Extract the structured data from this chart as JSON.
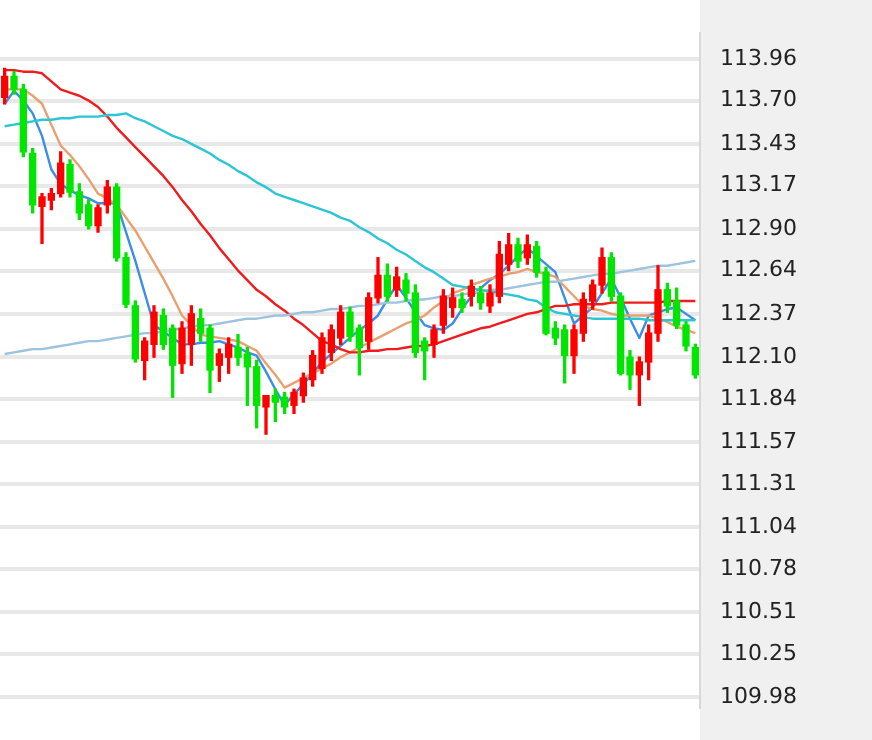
{
  "chart_data": {
    "type": "candlestick",
    "categories": [
      null,
      null,
      null,
      null,
      null,
      null,
      null,
      null,
      null,
      null,
      null,
      null,
      null,
      null,
      null,
      null,
      null,
      null,
      null,
      null,
      null,
      null,
      null,
      null,
      null,
      null,
      null,
      null,
      null,
      null,
      null,
      null,
      null,
      null,
      null,
      null,
      null,
      null,
      null,
      null,
      null,
      null,
      null,
      null,
      null,
      null,
      null,
      null,
      null,
      null,
      null,
      null,
      null,
      null,
      null,
      null,
      null,
      null,
      null,
      null,
      null,
      null,
      null,
      null,
      null,
      null,
      null,
      null,
      null,
      null,
      null,
      null,
      null,
      null,
      null
    ],
    "ohlc": [
      [
        113.72,
        113.9,
        113.68,
        113.85
      ],
      [
        113.85,
        113.88,
        113.74,
        113.77
      ],
      [
        113.77,
        113.8,
        113.35,
        113.38
      ],
      [
        113.37,
        113.4,
        113.0,
        113.05
      ],
      [
        113.04,
        113.12,
        112.81,
        113.1
      ],
      [
        113.08,
        113.15,
        113.02,
        113.12
      ],
      [
        113.12,
        113.38,
        113.1,
        113.31
      ],
      [
        113.3,
        113.33,
        113.1,
        113.13
      ],
      [
        113.13,
        113.18,
        112.96,
        113.0
      ],
      [
        113.05,
        113.08,
        112.9,
        112.92
      ],
      [
        112.92,
        113.05,
        112.88,
        113.03
      ],
      [
        113.05,
        113.2,
        113.0,
        113.16
      ],
      [
        113.16,
        113.18,
        112.7,
        112.72
      ],
      [
        112.72,
        112.75,
        112.41,
        112.43
      ],
      [
        112.42,
        112.45,
        112.07,
        112.09
      ],
      [
        112.08,
        112.22,
        111.96,
        112.2
      ],
      [
        112.18,
        112.42,
        112.1,
        112.38
      ],
      [
        112.36,
        112.4,
        112.15,
        112.18
      ],
      [
        112.28,
        112.3,
        111.85,
        112.05
      ],
      [
        112.06,
        112.32,
        112.0,
        112.28
      ],
      [
        112.18,
        112.42,
        112.05,
        112.37
      ],
      [
        112.34,
        112.4,
        112.2,
        112.25
      ],
      [
        112.28,
        112.3,
        111.88,
        112.02
      ],
      [
        112.05,
        112.15,
        111.95,
        112.12
      ],
      [
        112.1,
        112.22,
        112.0,
        112.18
      ],
      [
        112.16,
        112.24,
        112.05,
        112.1
      ],
      [
        112.12,
        112.16,
        111.8,
        112.04
      ],
      [
        112.04,
        112.08,
        111.66,
        111.8
      ],
      [
        111.79,
        111.86,
        111.62,
        111.86
      ],
      [
        111.86,
        111.9,
        111.7,
        111.82
      ],
      [
        111.85,
        111.88,
        111.75,
        111.79
      ],
      [
        111.8,
        111.9,
        111.75,
        111.88
      ],
      [
        111.86,
        112.0,
        111.82,
        111.97
      ],
      [
        111.96,
        112.14,
        111.92,
        112.11
      ],
      [
        112.03,
        112.25,
        112.0,
        112.22
      ],
      [
        112.13,
        112.3,
        112.08,
        112.27
      ],
      [
        112.22,
        112.42,
        112.18,
        112.38
      ],
      [
        112.38,
        112.41,
        112.2,
        112.23
      ],
      [
        112.28,
        112.3,
        111.99,
        112.16
      ],
      [
        112.2,
        112.5,
        112.15,
        112.47
      ],
      [
        112.47,
        112.72,
        112.44,
        112.61
      ],
      [
        112.61,
        112.68,
        112.45,
        112.48
      ],
      [
        112.52,
        112.66,
        112.48,
        112.6
      ],
      [
        112.58,
        112.62,
        112.45,
        112.5
      ],
      [
        112.5,
        112.55,
        112.1,
        112.13
      ],
      [
        112.2,
        112.22,
        111.96,
        112.14
      ],
      [
        112.18,
        112.3,
        112.1,
        112.27
      ],
      [
        112.3,
        112.52,
        112.25,
        112.48
      ],
      [
        112.41,
        112.53,
        112.35,
        112.47
      ],
      [
        112.46,
        112.5,
        112.38,
        112.41
      ],
      [
        112.48,
        112.58,
        112.42,
        112.54
      ],
      [
        112.5,
        112.54,
        112.4,
        112.44
      ],
      [
        112.42,
        112.55,
        112.38,
        112.5
      ],
      [
        112.48,
        112.82,
        112.44,
        112.74
      ],
      [
        112.68,
        112.87,
        112.64,
        112.8
      ],
      [
        112.8,
        112.84,
        112.66,
        112.7
      ],
      [
        112.72,
        112.86,
        112.68,
        112.8
      ],
      [
        112.79,
        112.82,
        112.6,
        112.63
      ],
      [
        112.63,
        112.66,
        112.24,
        112.25
      ],
      [
        112.28,
        112.32,
        112.18,
        112.22
      ],
      [
        112.27,
        112.3,
        111.94,
        112.11
      ],
      [
        112.11,
        112.3,
        112.0,
        112.27
      ],
      [
        112.25,
        112.5,
        112.2,
        112.46
      ],
      [
        112.45,
        112.58,
        112.4,
        112.55
      ],
      [
        112.55,
        112.78,
        112.5,
        112.72
      ],
      [
        112.72,
        112.75,
        112.45,
        112.48
      ],
      [
        112.48,
        112.5,
        111.99,
        112.0
      ],
      [
        112.1,
        112.14,
        111.9,
        111.99
      ],
      [
        111.99,
        112.1,
        111.8,
        112.07
      ],
      [
        112.07,
        112.3,
        111.96,
        112.25
      ],
      [
        112.25,
        112.67,
        112.2,
        112.52
      ],
      [
        112.52,
        112.56,
        112.38,
        112.42
      ],
      [
        112.45,
        112.53,
        112.28,
        112.3
      ],
      [
        112.3,
        112.32,
        112.14,
        112.17
      ],
      [
        112.16,
        112.18,
        111.97,
        111.99
      ]
    ],
    "colors": [
      "#ff0000",
      "#00e600",
      "#00e600",
      "#00e600",
      "#ff0000",
      "#ff0000",
      "#ff0000",
      "#00e600",
      "#00e600",
      "#00e600",
      "#ff0000",
      "#ff0000",
      "#00e600",
      "#00e600",
      "#00e600",
      "#ff0000",
      "#ff0000",
      "#00e600",
      "#00e600",
      "#ff0000",
      "#ff0000",
      "#00e600",
      "#00e600",
      "#ff0000",
      "#ff0000",
      "#00e600",
      "#00e600",
      "#00e600",
      "#ff0000",
      "#00e600",
      "#00e600",
      "#ff0000",
      "#ff0000",
      "#ff0000",
      "#ff0000",
      "#ff0000",
      "#ff0000",
      "#00e600",
      "#00e600",
      "#ff0000",
      "#ff0000",
      "#00e600",
      "#ff0000",
      "#00e600",
      "#00e600",
      "#00e600",
      "#ff0000",
      "#ff0000",
      "#ff0000",
      "#00e600",
      "#ff0000",
      "#00e600",
      "#ff0000",
      "#ff0000",
      "#ff0000",
      "#00e600",
      "#ff0000",
      "#00e600",
      "#00e600",
      "#00e600",
      "#00e600",
      "#ff0000",
      "#ff0000",
      "#ff0000",
      "#ff0000",
      "#00e600",
      "#00e600",
      "#00e600",
      "#ff0000",
      "#ff0000",
      "#ff0000",
      "#00e600",
      "#00e600",
      "#00e600",
      "#00e600"
    ],
    "series": [
      {
        "type": "line",
        "color": "#2cc5d6",
        "values": [
          113.54,
          113.55,
          113.56,
          113.57,
          113.58,
          113.58,
          113.59,
          113.59,
          113.6,
          113.6,
          113.6,
          113.61,
          113.61,
          113.62,
          113.59,
          113.57,
          113.54,
          113.51,
          113.48,
          113.46,
          113.43,
          113.4,
          113.37,
          113.33,
          113.3,
          113.26,
          113.23,
          113.19,
          113.16,
          113.12,
          113.1,
          113.08,
          113.06,
          113.04,
          113.02,
          113.0,
          112.97,
          112.95,
          112.91,
          112.88,
          112.84,
          112.81,
          112.77,
          112.74,
          112.7,
          112.66,
          112.63,
          112.59,
          112.55,
          112.54,
          112.53,
          112.52,
          112.51,
          112.5,
          112.49,
          112.48,
          112.46,
          112.45,
          112.41,
          112.38,
          112.37,
          112.36,
          112.35,
          112.34,
          112.34,
          112.34,
          112.34,
          112.34,
          112.34,
          112.33,
          112.33,
          112.33,
          112.33,
          112.33,
          112.33
        ]
      },
      {
        "type": "line",
        "color": "#9cc3e0",
        "values": [
          112.12,
          112.13,
          112.14,
          112.15,
          112.15,
          112.16,
          112.17,
          112.18,
          112.19,
          112.2,
          112.2,
          112.21,
          112.22,
          112.23,
          112.24,
          112.25,
          112.25,
          112.26,
          112.27,
          112.28,
          112.29,
          112.3,
          112.3,
          112.31,
          112.32,
          112.33,
          112.34,
          112.34,
          112.35,
          112.36,
          112.36,
          112.37,
          112.38,
          112.38,
          112.39,
          112.4,
          112.4,
          112.41,
          112.42,
          112.42,
          112.43,
          112.44,
          112.44,
          112.45,
          112.46,
          112.46,
          112.47,
          112.48,
          112.48,
          112.49,
          112.5,
          112.51,
          112.52,
          112.52,
          112.53,
          112.54,
          112.55,
          112.56,
          112.57,
          112.57,
          112.58,
          112.59,
          112.6,
          112.61,
          112.62,
          112.62,
          112.63,
          112.64,
          112.65,
          112.66,
          112.67,
          112.67,
          112.68,
          112.69,
          112.7
        ]
      },
      {
        "type": "line",
        "color": "#ee1c1c",
        "values": [
          113.89,
          113.89,
          113.88,
          113.88,
          113.87,
          113.82,
          113.77,
          113.75,
          113.73,
          113.7,
          113.66,
          113.6,
          113.53,
          113.47,
          113.41,
          113.35,
          113.29,
          113.23,
          113.16,
          113.08,
          113.01,
          112.93,
          112.86,
          112.78,
          112.71,
          112.64,
          112.58,
          112.52,
          112.48,
          112.43,
          112.39,
          112.34,
          112.3,
          112.25,
          112.2,
          112.18,
          112.15,
          112.13,
          112.13,
          112.14,
          112.14,
          112.15,
          112.15,
          112.16,
          112.17,
          112.17,
          112.18,
          112.2,
          112.22,
          112.24,
          112.26,
          112.28,
          112.29,
          112.31,
          112.33,
          112.35,
          112.37,
          112.38,
          112.4,
          112.42,
          112.42,
          112.43,
          112.43,
          112.43,
          112.43,
          112.44,
          112.44,
          112.44,
          112.44,
          112.44,
          112.44,
          112.45,
          112.45,
          112.45,
          112.45
        ]
      },
      {
        "type": "line",
        "color": "#e8a070",
        "values": [
          113.77,
          113.77,
          113.77,
          113.73,
          113.68,
          113.55,
          113.42,
          113.36,
          113.29,
          113.21,
          113.12,
          113.09,
          113.05,
          112.97,
          112.89,
          112.79,
          112.69,
          112.59,
          112.48,
          112.36,
          112.3,
          112.24,
          112.23,
          112.22,
          112.21,
          112.2,
          112.17,
          112.14,
          112.06,
          111.99,
          111.91,
          111.94,
          111.97,
          112.0,
          112.03,
          112.06,
          112.1,
          112.13,
          112.16,
          112.19,
          112.22,
          112.25,
          112.28,
          112.31,
          112.33,
          112.36,
          112.41,
          112.45,
          112.5,
          112.52,
          112.55,
          112.57,
          112.59,
          112.6,
          112.62,
          112.63,
          112.65,
          112.63,
          112.62,
          112.6,
          112.54,
          112.48,
          112.42,
          112.4,
          112.39,
          112.37,
          112.36,
          112.36,
          112.36,
          112.36,
          112.34,
          112.32,
          112.29,
          112.27,
          112.25
        ]
      },
      {
        "type": "line",
        "color": "#3a8ee8",
        "values": [
          113.68,
          113.76,
          113.7,
          113.62,
          113.48,
          113.27,
          113.18,
          113.14,
          113.11,
          113.09,
          113.06,
          113.06,
          113.06,
          112.88,
          112.7,
          112.5,
          112.3,
          112.26,
          112.22,
          112.18,
          112.18,
          112.19,
          112.19,
          112.2,
          112.18,
          112.16,
          112.13,
          112.11,
          112.01,
          111.9,
          111.8,
          111.87,
          111.93,
          112.0,
          112.07,
          112.12,
          112.17,
          112.22,
          112.27,
          112.31,
          112.36,
          112.46,
          112.55,
          112.47,
          112.38,
          112.3,
          112.28,
          112.27,
          112.31,
          112.4,
          112.48,
          112.53,
          112.58,
          112.62,
          112.67,
          112.73,
          112.78,
          112.73,
          112.68,
          112.63,
          112.47,
          112.31,
          112.36,
          112.41,
          112.5,
          112.59,
          112.47,
          112.34,
          112.22,
          112.36,
          112.38,
          112.4,
          112.41,
          112.37,
          112.33
        ]
      }
    ],
    "ylim": [
      109.92,
      114.12
    ],
    "yticks": [
      113.96,
      {
        "value": 113.7,
        "label": "113.70"
      },
      113.43,
      113.17,
      {
        "value": 112.9,
        "label": "112.90"
      },
      112.64,
      112.37,
      {
        "value": 112.1,
        "label": "112.10"
      },
      111.84,
      111.57,
      111.31,
      111.04,
      110.78,
      110.51,
      110.25,
      109.98
    ],
    "grid": "y",
    "tick_labels": "y"
  }
}
